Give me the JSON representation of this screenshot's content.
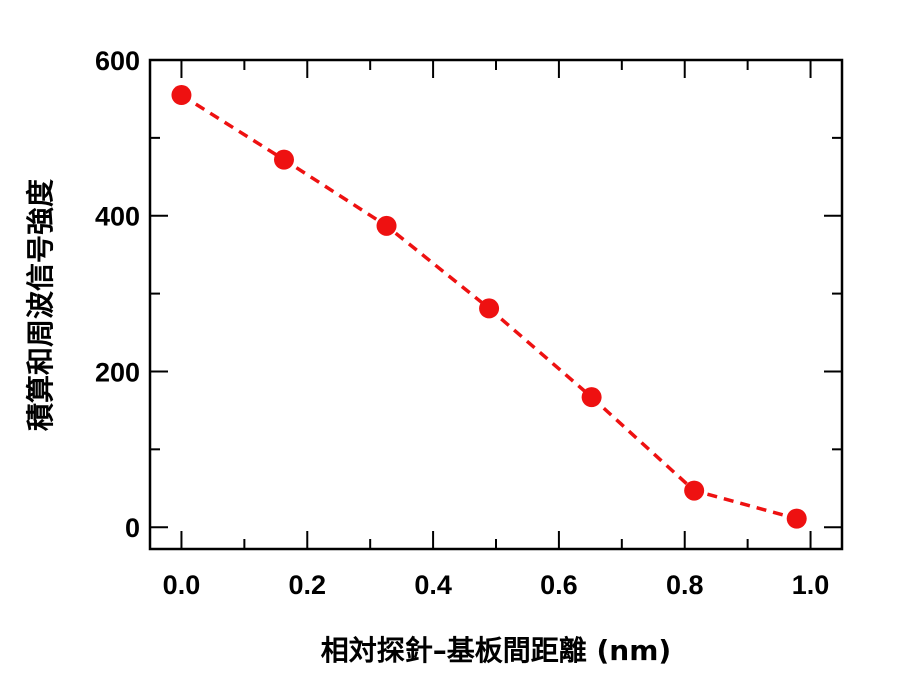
{
  "chart_data": {
    "type": "scatter",
    "title": "",
    "xlabel": "相対探針–基板間距離 (nm)",
    "ylabel": "積算和周波信号強度",
    "xlim": [
      -0.05,
      1.05
    ],
    "ylim": [
      -28,
      600
    ],
    "x_ticks": [
      0.0,
      0.2,
      0.4,
      0.6,
      0.8,
      1.0
    ],
    "x_tick_labels": [
      "0.0",
      "0.2",
      "0.4",
      "0.6",
      "0.8",
      "1.0"
    ],
    "y_ticks": [
      0,
      200,
      400,
      600
    ],
    "y_tick_labels": [
      "0",
      "200",
      "400",
      "600"
    ],
    "grid": false,
    "legend": "none",
    "series": [
      {
        "line_style": "dashed",
        "color": "#ee1111",
        "x": [
          0.0,
          0.163,
          0.326,
          0.489,
          0.652,
          0.815,
          0.978
        ],
        "y": [
          555,
          472,
          387,
          281,
          167,
          47,
          11
        ]
      }
    ]
  }
}
